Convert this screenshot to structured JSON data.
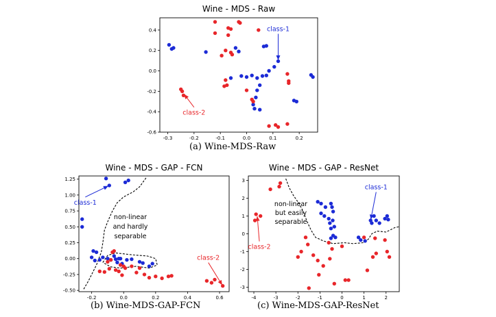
{
  "colors": {
    "class_1": "#1c2bd6",
    "class_2": "#e8262a",
    "axis": "#000000"
  },
  "captions": {
    "a": "(a) Wine-MDS-Raw",
    "b": "(b) Wine-MDS-GAP-FCN",
    "c": "(c) Wine-MDS-GAP-ResNet"
  },
  "chart_data": [
    {
      "id": "raw",
      "type": "scatter",
      "title": "Wine - MDS - Raw",
      "xlabel": "",
      "ylabel": "",
      "xlim": [
        -0.33,
        0.27
      ],
      "ylim": [
        -0.6,
        0.52
      ],
      "xticks": [
        -0.3,
        -0.2,
        -0.1,
        0.0,
        0.1,
        0.2
      ],
      "xtick_labels": [
        "-0.3",
        "-0.2",
        "-0.1",
        "0.0",
        "0.1",
        "0.2"
      ],
      "yticks": [
        -0.6,
        -0.4,
        -0.2,
        0.0,
        0.2,
        0.4
      ],
      "ytick_labels": [
        "-0.6",
        "-0.4",
        "-0.2",
        "0.0",
        "0.2",
        "0.4"
      ],
      "series": [
        {
          "name": "class-1",
          "color_key": "class_1",
          "points": [
            [
              -0.295,
              0.255
            ],
            [
              -0.285,
              0.215
            ],
            [
              -0.278,
              0.225
            ],
            [
              -0.155,
              0.185
            ],
            [
              -0.042,
              0.225
            ],
            [
              -0.03,
              0.19
            ],
            [
              0.065,
              0.24
            ],
            [
              0.075,
              0.245
            ],
            [
              0.12,
              0.095
            ],
            [
              0.105,
              0.04
            ],
            [
              0.085,
              0.0
            ],
            [
              0.075,
              -0.045
            ],
            [
              0.06,
              -0.05
            ],
            [
              0.04,
              -0.07
            ],
            [
              0.02,
              -0.045
            ],
            [
              0.0,
              -0.06
            ],
            [
              -0.02,
              -0.05
            ],
            [
              -0.06,
              -0.07
            ],
            [
              0.05,
              -0.14
            ],
            [
              0.04,
              -0.19
            ],
            [
              0.035,
              -0.26
            ],
            [
              0.025,
              -0.33
            ],
            [
              0.03,
              -0.37
            ],
            [
              0.05,
              -0.38
            ],
            [
              0.18,
              -0.29
            ],
            [
              0.19,
              -0.3
            ],
            [
              0.245,
              -0.04
            ],
            [
              0.252,
              -0.06
            ]
          ]
        },
        {
          "name": "class-2",
          "color_key": "class_2",
          "points": [
            [
              -0.12,
              0.48
            ],
            [
              -0.12,
              0.37
            ],
            [
              -0.07,
              0.42
            ],
            [
              -0.06,
              0.41
            ],
            [
              -0.03,
              0.48
            ],
            [
              -0.025,
              0.47
            ],
            [
              0.045,
              0.4
            ],
            [
              -0.07,
              0.35
            ],
            [
              -0.08,
              0.2
            ],
            [
              -0.055,
              0.16
            ],
            [
              -0.06,
              0.18
            ],
            [
              -0.095,
              0.15
            ],
            [
              -0.08,
              -0.09
            ],
            [
              -0.075,
              -0.14
            ],
            [
              -0.085,
              -0.15
            ],
            [
              0.0,
              -0.19
            ],
            [
              0.02,
              -0.28
            ],
            [
              0.025,
              -0.3
            ],
            [
              0.155,
              -0.03
            ],
            [
              0.16,
              -0.1
            ],
            [
              0.16,
              -0.12
            ],
            [
              0.155,
              -0.52
            ],
            [
              0.11,
              -0.53
            ],
            [
              0.12,
              -0.55
            ],
            [
              0.085,
              -0.54
            ],
            [
              -0.25,
              -0.18
            ],
            [
              -0.245,
              -0.2
            ],
            [
              -0.24,
              -0.24
            ]
          ]
        }
      ],
      "annotations": [
        {
          "text": "class-1",
          "color_key": "class_1",
          "xy": [
            0.12,
            0.095
          ],
          "xytext": [
            0.12,
            0.39
          ]
        },
        {
          "text": "class-2",
          "color_key": "class_2",
          "xy": [
            -0.24,
            -0.22
          ],
          "xytext": [
            -0.2,
            -0.43
          ]
        }
      ]
    },
    {
      "id": "fcn",
      "type": "scatter",
      "title": "Wine - MDS - GAP - FCN",
      "xlabel": "",
      "ylabel": "",
      "xlim": [
        -0.28,
        0.66
      ],
      "ylim": [
        -0.52,
        1.3
      ],
      "xticks": [
        -0.2,
        0.0,
        0.2,
        0.4,
        0.6
      ],
      "xtick_labels": [
        "-0.2",
        "0.0",
        "0.2",
        "0.4",
        "0.6"
      ],
      "yticks": [
        -0.5,
        -0.25,
        0.0,
        0.25,
        0.5,
        0.75,
        1.0,
        1.25
      ],
      "ytick_labels": [
        "-0.50",
        "-0.25",
        "0.00",
        "0.25",
        "0.50",
        "0.75",
        "1.00",
        "1.25"
      ],
      "series": [
        {
          "name": "class-1",
          "color_key": "class_1",
          "points": [
            [
              -0.26,
              0.62
            ],
            [
              -0.26,
              0.5
            ],
            [
              -0.11,
              1.26
            ],
            [
              -0.09,
              1.15
            ],
            [
              0.01,
              1.2
            ],
            [
              0.03,
              1.23
            ],
            [
              -0.19,
              0.12
            ],
            [
              -0.17,
              0.1
            ],
            [
              -0.2,
              0.02
            ],
            [
              -0.15,
              -0.02
            ],
            [
              -0.18,
              -0.03
            ],
            [
              -0.13,
              0.02
            ],
            [
              -0.1,
              0.0
            ],
            [
              -0.08,
              -0.02
            ],
            [
              -0.06,
              0.04
            ],
            [
              -0.05,
              -0.01
            ],
            [
              -0.03,
              0.0
            ],
            [
              -0.04,
              -0.06
            ],
            [
              -0.01,
              -0.08
            ],
            [
              -0.02,
              0.0
            ],
            [
              0.02,
              -0.02
            ],
            [
              0.05,
              -0.01
            ],
            [
              0.1,
              -0.05
            ],
            [
              0.12,
              -0.07
            ],
            [
              0.16,
              -0.12
            ],
            [
              0.18,
              -0.08
            ]
          ]
        },
        {
          "name": "class-2",
          "color_key": "class_2",
          "points": [
            [
              -0.06,
              0.12
            ],
            [
              -0.07,
              0.1
            ],
            [
              -0.08,
              -0.02
            ],
            [
              -0.1,
              -0.05
            ],
            [
              -0.15,
              -0.2
            ],
            [
              -0.12,
              -0.21
            ],
            [
              -0.09,
              -0.16
            ],
            [
              -0.05,
              -0.18
            ],
            [
              -0.03,
              -0.2
            ],
            [
              -0.01,
              -0.26
            ],
            [
              0.0,
              -0.12
            ],
            [
              0.05,
              -0.12
            ],
            [
              0.1,
              -0.15
            ],
            [
              0.08,
              -0.22
            ],
            [
              0.13,
              -0.25
            ],
            [
              0.16,
              -0.3
            ],
            [
              0.2,
              -0.28
            ],
            [
              0.24,
              -0.31
            ],
            [
              0.28,
              -0.28
            ],
            [
              0.3,
              -0.27
            ],
            [
              0.52,
              -0.35
            ],
            [
              0.55,
              -0.38
            ],
            [
              0.57,
              -0.33
            ],
            [
              0.62,
              -0.43
            ],
            [
              0.01,
              -0.15
            ],
            [
              -0.02,
              -0.1
            ]
          ]
        }
      ],
      "boundary": [
        [
          -0.25,
          -0.48
        ],
        [
          -0.22,
          -0.35
        ],
        [
          -0.2,
          -0.25
        ],
        [
          -0.17,
          -0.1
        ],
        [
          -0.14,
          0.1
        ],
        [
          -0.13,
          0.25
        ],
        [
          -0.12,
          0.45
        ],
        [
          -0.1,
          0.58
        ],
        [
          -0.07,
          0.75
        ],
        [
          -0.04,
          0.88
        ],
        [
          0.0,
          0.97
        ],
        [
          0.06,
          1.05
        ],
        [
          0.1,
          1.13
        ],
        [
          0.14,
          1.27
        ]
      ],
      "boundary_loop": [
        [
          -0.13,
          -0.06
        ],
        [
          -0.1,
          0.05
        ],
        [
          -0.05,
          0.09
        ],
        [
          0.05,
          0.06
        ],
        [
          0.15,
          0.04
        ],
        [
          0.2,
          0.0
        ],
        [
          0.21,
          -0.1
        ],
        [
          0.16,
          -0.15
        ],
        [
          0.08,
          -0.12
        ],
        [
          -0.02,
          -0.15
        ],
        [
          -0.08,
          -0.13
        ],
        [
          -0.13,
          -0.06
        ]
      ],
      "annotations": [
        {
          "text": "class-1",
          "color_key": "class_1",
          "xy": [
            -0.09,
            1.15
          ],
          "xytext": [
            -0.24,
            0.85
          ]
        },
        {
          "text": "class-2",
          "color_key": "class_2",
          "xy": [
            0.62,
            -0.43
          ],
          "xytext": [
            0.53,
            -0.02
          ]
        }
      ],
      "note_lines": [
        "non-linear",
        "and hardly",
        "separable"
      ]
    },
    {
      "id": "resnet",
      "type": "scatter",
      "title": "Wine - MDS - GAP - ResNet",
      "xlabel": "",
      "ylabel": "",
      "xlim": [
        -4.25,
        2.6
      ],
      "ylim": [
        -3.25,
        3.25
      ],
      "xticks": [
        -4,
        -3,
        -2,
        -1,
        0,
        1,
        2
      ],
      "xtick_labels": [
        "-4",
        "-3",
        "-2",
        "-1",
        "0",
        "1",
        "2"
      ],
      "yticks": [
        -3,
        -2,
        -1,
        0,
        1,
        2,
        3
      ],
      "ytick_labels": [
        "-3",
        "-2",
        "-1",
        "0",
        "1",
        "2",
        "3"
      ],
      "series": [
        {
          "name": "class-1",
          "color_key": "class_1",
          "points": [
            [
              -1.1,
              1.8
            ],
            [
              -0.95,
              1.7
            ],
            [
              -0.75,
              1.5
            ],
            [
              -0.5,
              1.7
            ],
            [
              -0.45,
              1.5
            ],
            [
              -0.4,
              1.25
            ],
            [
              -0.6,
              0.85
            ],
            [
              -0.55,
              0.6
            ],
            [
              -0.42,
              0.75
            ],
            [
              -0.8,
              1.0
            ],
            [
              -0.95,
              1.15
            ],
            [
              -0.35,
              0.4
            ],
            [
              -0.5,
              0.3
            ],
            [
              -0.3,
              -0.2
            ],
            [
              -0.5,
              -0.25
            ],
            [
              -0.4,
              -0.1
            ],
            [
              0.75,
              -0.2
            ],
            [
              0.85,
              -0.35
            ],
            [
              1.05,
              -0.4
            ],
            [
              1.3,
              0.75
            ],
            [
              1.35,
              0.6
            ],
            [
              1.45,
              1.0
            ],
            [
              1.55,
              0.75
            ],
            [
              1.7,
              0.6
            ],
            [
              1.95,
              0.85
            ],
            [
              2.05,
              1.0
            ],
            [
              2.1,
              0.8
            ]
          ]
        },
        {
          "name": "class-2",
          "color_key": "class_2",
          "points": [
            [
              -3.25,
              2.5
            ],
            [
              -2.85,
              2.65
            ],
            [
              -2.8,
              2.85
            ],
            [
              -3.95,
              0.75
            ],
            [
              -3.9,
              1.1
            ],
            [
              -3.7,
              1.0
            ],
            [
              -2.0,
              -1.3
            ],
            [
              -1.85,
              -1.0
            ],
            [
              -1.65,
              -0.2
            ],
            [
              -1.55,
              -0.6
            ],
            [
              -1.3,
              -1.2
            ],
            [
              -1.1,
              -1.5
            ],
            [
              -1.05,
              -2.3
            ],
            [
              -0.85,
              -1.8
            ],
            [
              -0.6,
              -0.5
            ],
            [
              -0.55,
              -1.4
            ],
            [
              -0.45,
              -0.85
            ],
            [
              -0.35,
              -2.8
            ],
            [
              0.0,
              -0.7
            ],
            [
              0.15,
              -2.6
            ],
            [
              0.3,
              -2.6
            ],
            [
              1.0,
              -0.2
            ],
            [
              1.15,
              -2.05
            ],
            [
              1.4,
              -1.3
            ],
            [
              1.5,
              -0.25
            ],
            [
              1.55,
              -1.1
            ],
            [
              1.95,
              -0.35
            ],
            [
              2.05,
              -1.0
            ],
            [
              2.15,
              -1.3
            ],
            [
              -1.5,
              -3.05
            ]
          ]
        }
      ],
      "boundary": [
        [
          -2.55,
          3.1
        ],
        [
          -2.4,
          2.6
        ],
        [
          -2.2,
          2.15
        ],
        [
          -1.95,
          1.7
        ],
        [
          -1.8,
          1.35
        ],
        [
          -1.55,
          0.6
        ],
        [
          -1.4,
          0.2
        ],
        [
          -1.2,
          -0.2
        ],
        [
          -0.85,
          -0.4
        ],
        [
          -0.4,
          -0.55
        ],
        [
          0.1,
          -0.5
        ],
        [
          0.5,
          -0.55
        ],
        [
          0.95,
          -0.5
        ],
        [
          1.2,
          -0.3
        ],
        [
          1.35,
          0.0
        ],
        [
          1.6,
          0.15
        ],
        [
          2.0,
          0.1
        ],
        [
          2.4,
          0.35
        ],
        [
          2.6,
          0.4
        ]
      ],
      "annotations": [
        {
          "text": "class-1",
          "color_key": "class_1",
          "xy": [
            1.3,
            0.75
          ],
          "xytext": [
            1.55,
            2.5
          ]
        },
        {
          "text": "class-2",
          "color_key": "class_2",
          "xy": [
            -3.85,
            1.05
          ],
          "xytext": [
            -3.75,
            -0.85
          ]
        }
      ],
      "note_lines": [
        "non-linear",
        "but easily",
        "separable"
      ]
    }
  ]
}
